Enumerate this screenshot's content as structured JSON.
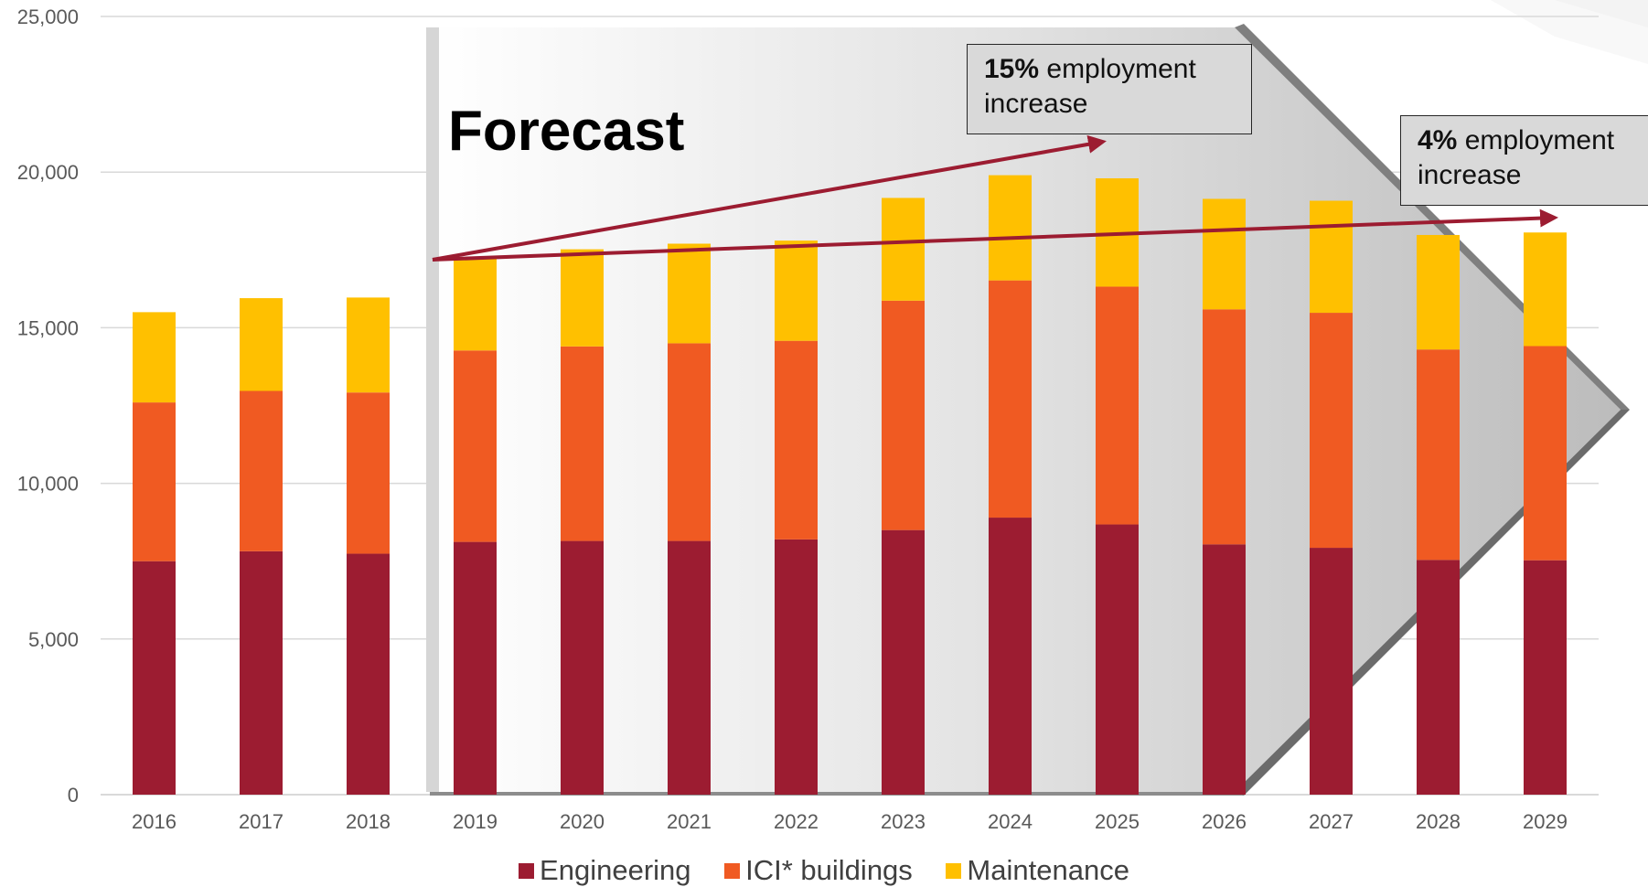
{
  "chart_data": {
    "type": "bar",
    "stacked": true,
    "title": "",
    "xlabel": "",
    "ylabel": "",
    "ylim": [
      0,
      25000
    ],
    "yticks": [
      0,
      5000,
      10000,
      15000,
      20000,
      25000
    ],
    "ytick_labels": [
      "0",
      "5,000",
      "10,000",
      "15,000",
      "20,000",
      "25,000"
    ],
    "grid": true,
    "legend_position": "bottom",
    "categories": [
      "2016",
      "2017",
      "2018",
      "2019",
      "2020",
      "2021",
      "2022",
      "2023",
      "2024",
      "2025",
      "2026",
      "2027",
      "2028",
      "2029"
    ],
    "series": [
      {
        "name": "Engineering",
        "color": "#9c1c31",
        "values": [
          7500,
          7820,
          7740,
          8120,
          8150,
          8150,
          8200,
          8500,
          8900,
          8680,
          8040,
          7930,
          7540,
          7530
        ]
      },
      {
        "name": "ICI* buildings",
        "color": "#f05a22",
        "values": [
          5100,
          5150,
          5180,
          6150,
          6250,
          6350,
          6380,
          7370,
          7620,
          7640,
          7550,
          7550,
          6760,
          6880
        ]
      },
      {
        "name": "Maintenance",
        "color": "#ffc000",
        "values": [
          2900,
          2980,
          3050,
          3000,
          3120,
          3200,
          3220,
          3300,
          3380,
          3480,
          3550,
          3600,
          3680,
          3650
        ]
      }
    ],
    "annotations": {
      "forecast_label": "Forecast",
      "callout_15": {
        "bold": "15%",
        "text": " employment increase"
      },
      "callout_4": {
        "bold": "4%",
        "text": " employment increase"
      }
    }
  },
  "colors": {
    "engineering": "#9c1c31",
    "ici_buildings": "#f05a22",
    "maintenance": "#ffc000",
    "trend_arrow": "#9c1c31",
    "gridline": "#d9d9d9",
    "forecast_shade": "#bfbfbf"
  }
}
